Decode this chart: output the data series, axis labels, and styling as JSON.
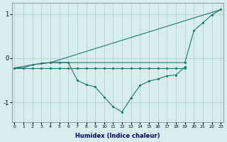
{
  "xlabel": "Humidex (Indice chaleur)",
  "bg_color": "#d8eeee",
  "line_color": "#1a7a6e",
  "grid_color": "#aacece",
  "ylim": [
    -1.45,
    1.25
  ],
  "xlim": [
    -0.3,
    23.3
  ],
  "yticks": [
    -1,
    0,
    1
  ],
  "xticks": [
    0,
    1,
    2,
    3,
    4,
    5,
    6,
    7,
    8,
    9,
    10,
    11,
    12,
    13,
    14,
    15,
    16,
    17,
    18,
    19,
    20,
    21,
    22,
    23
  ],
  "lines": [
    {
      "x": [
        0,
        1,
        2,
        3,
        4,
        5,
        6,
        7,
        8,
        9,
        10,
        11,
        12,
        13,
        14,
        15,
        16,
        17,
        18,
        19,
        20,
        21,
        22,
        23
      ],
      "y": [
        -0.22,
        -0.22,
        -0.22,
        -0.22,
        -0.22,
        -0.22,
        -0.22,
        -0.22,
        -0.22,
        -0.22,
        -0.22,
        -0.22,
        -0.22,
        -0.22,
        -0.22,
        -0.22,
        -0.22,
        -0.22,
        -0.22,
        -0.22,
        null,
        null,
        null,
        null
      ],
      "marker": true
    },
    {
      "x": [
        0,
        1,
        2,
        3,
        4,
        5,
        6,
        7,
        8,
        9,
        10,
        11,
        12,
        13,
        14,
        15,
        16,
        17,
        18,
        19
      ],
      "y": [
        -0.22,
        -0.22,
        -0.15,
        -0.12,
        -0.1,
        -0.1,
        -0.1,
        -0.1,
        -0.1,
        -0.1,
        -0.1,
        -0.1,
        -0.1,
        -0.1,
        -0.1,
        -0.1,
        -0.1,
        -0.1,
        -0.1,
        -0.1
      ],
      "marker": false
    },
    {
      "x": [
        4,
        23
      ],
      "y": [
        -0.1,
        1.1
      ],
      "marker": false
    },
    {
      "x": [
        0,
        2,
        3,
        4,
        5,
        6,
        7,
        8,
        9,
        10,
        11,
        12,
        13,
        14,
        15,
        16,
        17,
        18,
        19
      ],
      "y": [
        -0.22,
        -0.15,
        -0.12,
        -0.1,
        -0.1,
        -0.1,
        -0.5,
        -0.6,
        -0.65,
        -0.88,
        -1.1,
        -1.22,
        -0.9,
        -0.62,
        -0.52,
        -0.47,
        -0.4,
        -0.38,
        -0.2
      ],
      "marker": true
    },
    {
      "x": [
        4,
        3
      ],
      "y": [
        -0.1,
        -0.12
      ],
      "marker": false
    },
    {
      "x": [
        19,
        20,
        21,
        22,
        23
      ],
      "y": [
        -0.1,
        0.62,
        0.8,
        0.98,
        1.1
      ],
      "marker": true
    }
  ]
}
